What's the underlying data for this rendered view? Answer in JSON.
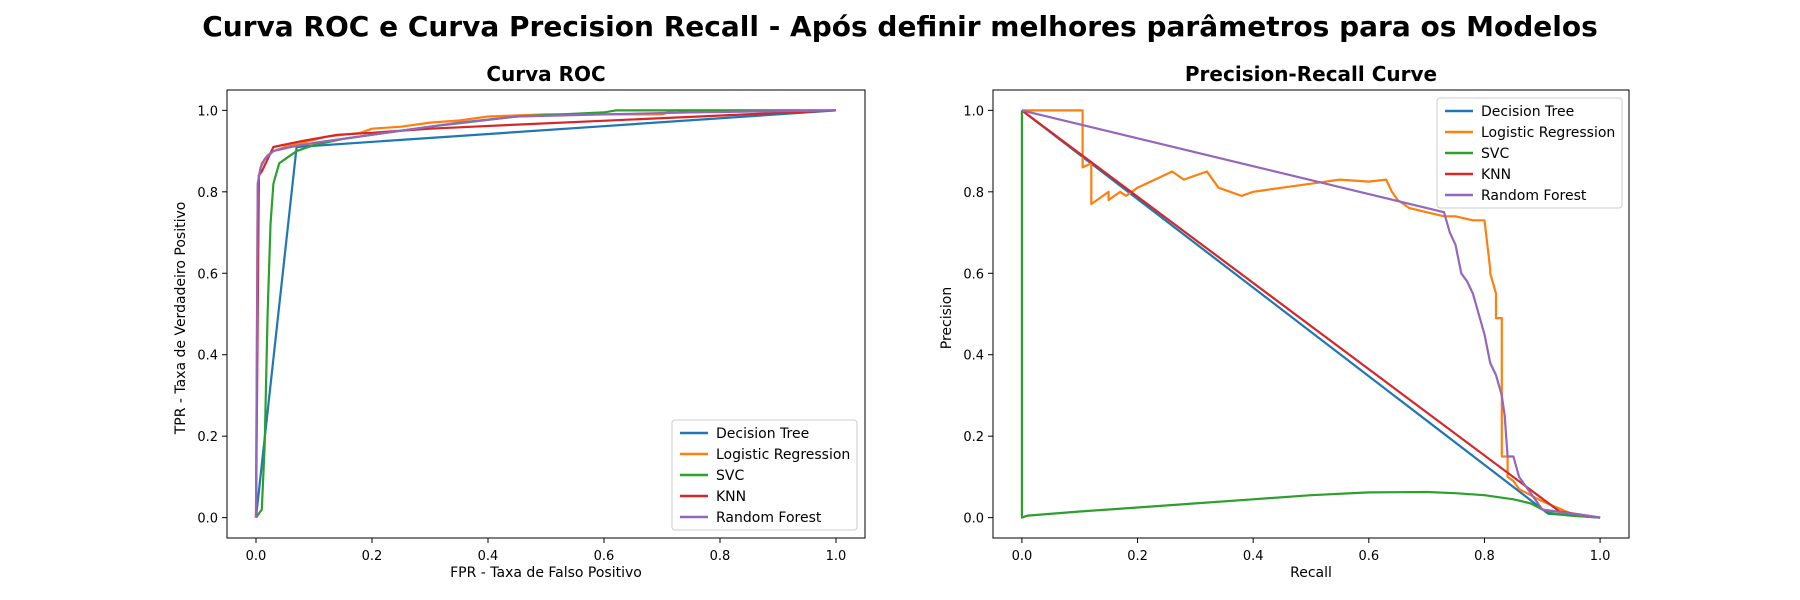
{
  "figure": {
    "title": "Curva ROC e Curva Precision Recall - Após definir melhores parâmetros para os Modelos"
  },
  "colors": {
    "Decision Tree": "#1f77b4",
    "Logistic Regression": "#ff7f0e",
    "SVC": "#2ca02c",
    "KNN": "#d62728",
    "Random Forest": "#9467bd"
  },
  "chart_data": [
    {
      "type": "line",
      "title": "Curva ROC",
      "xlabel": "FPR - Taxa de Falso Positivo",
      "ylabel": "TPR - Taxa de Verdadeiro Positivo",
      "xlim": [
        -0.05,
        1.05
      ],
      "ylim": [
        -0.05,
        1.05
      ],
      "xticks": [
        0.0,
        0.2,
        0.4,
        0.6,
        0.8,
        1.0
      ],
      "yticks": [
        0.0,
        0.2,
        0.4,
        0.6,
        0.8,
        1.0
      ],
      "legend": "lower-right",
      "series": [
        {
          "name": "Decision Tree",
          "x": [
            0.0,
            0.07,
            1.0
          ],
          "y": [
            0.0,
            0.91,
            1.0
          ]
        },
        {
          "name": "Logistic Regression",
          "x": [
            0.0,
            0.003,
            0.005,
            0.01,
            0.02,
            0.03,
            0.05,
            0.08,
            0.12,
            0.18,
            0.2,
            0.25,
            0.3,
            0.35,
            0.4,
            0.5,
            0.7,
            0.72,
            1.0
          ],
          "y": [
            0.0,
            0.8,
            0.84,
            0.87,
            0.89,
            0.9,
            0.91,
            0.92,
            0.935,
            0.945,
            0.955,
            0.96,
            0.97,
            0.975,
            0.985,
            0.99,
            0.99,
            1.0,
            1.0
          ]
        },
        {
          "name": "SVC",
          "x": [
            0.0,
            0.01,
            0.015,
            0.02,
            0.025,
            0.03,
            0.04,
            0.05,
            0.07,
            0.1,
            0.15,
            0.2,
            0.3,
            0.45,
            0.6,
            0.62,
            1.0
          ],
          "y": [
            0.0,
            0.02,
            0.18,
            0.5,
            0.72,
            0.82,
            0.87,
            0.88,
            0.9,
            0.915,
            0.93,
            0.94,
            0.96,
            0.985,
            0.995,
            1.0,
            1.0
          ]
        },
        {
          "name": "KNN",
          "x": [
            0.0,
            0.005,
            0.01,
            0.03,
            0.08,
            0.14,
            0.2,
            0.3,
            0.45,
            1.0
          ],
          "y": [
            0.0,
            0.84,
            0.85,
            0.91,
            0.925,
            0.94,
            0.945,
            0.955,
            0.965,
            1.0
          ]
        },
        {
          "name": "Random Forest",
          "x": [
            0.0,
            0.003,
            0.008,
            0.015,
            0.03,
            0.06,
            0.1,
            0.15,
            0.2,
            0.25,
            0.35,
            0.45,
            0.6,
            0.75,
            1.0
          ],
          "y": [
            0.0,
            0.82,
            0.86,
            0.88,
            0.9,
            0.91,
            0.92,
            0.93,
            0.94,
            0.95,
            0.97,
            0.985,
            0.99,
            0.995,
            1.0
          ]
        }
      ]
    },
    {
      "type": "line",
      "title": "Precision-Recall Curve",
      "xlabel": "Recall",
      "ylabel": "Precision",
      "xlim": [
        -0.05,
        1.05
      ],
      "ylim": [
        -0.05,
        1.05
      ],
      "xticks": [
        0.0,
        0.2,
        0.4,
        0.6,
        0.8,
        1.0
      ],
      "yticks": [
        0.0,
        0.2,
        0.4,
        0.6,
        0.8,
        1.0
      ],
      "legend": "upper-right",
      "series": [
        {
          "name": "Decision Tree",
          "x": [
            0.0,
            0.91,
            1.0
          ],
          "y": [
            1.0,
            0.01,
            0.0
          ]
        },
        {
          "name": "Logistic Regression",
          "x": [
            0.0,
            0.105,
            0.105,
            0.12,
            0.12,
            0.13,
            0.15,
            0.15,
            0.17,
            0.18,
            0.19,
            0.2,
            0.23,
            0.26,
            0.28,
            0.3,
            0.32,
            0.34,
            0.36,
            0.38,
            0.4,
            0.45,
            0.5,
            0.55,
            0.6,
            0.63,
            0.64,
            0.65,
            0.66,
            0.67,
            0.7,
            0.73,
            0.75,
            0.78,
            0.8,
            0.81,
            0.81,
            0.82,
            0.82,
            0.83,
            0.83,
            0.84,
            0.84,
            0.85,
            0.86,
            0.9,
            0.95,
            1.0
          ],
          "y": [
            1.0,
            1.0,
            0.86,
            0.87,
            0.77,
            0.78,
            0.8,
            0.78,
            0.8,
            0.79,
            0.8,
            0.81,
            0.83,
            0.85,
            0.83,
            0.84,
            0.85,
            0.81,
            0.8,
            0.79,
            0.8,
            0.81,
            0.82,
            0.83,
            0.825,
            0.83,
            0.8,
            0.78,
            0.77,
            0.76,
            0.75,
            0.74,
            0.74,
            0.73,
            0.73,
            0.61,
            0.6,
            0.55,
            0.49,
            0.49,
            0.15,
            0.15,
            0.1,
            0.09,
            0.07,
            0.04,
            0.01,
            0.0
          ]
        },
        {
          "name": "SVC",
          "x": [
            0.0,
            0.0,
            0.01,
            0.1,
            0.2,
            0.3,
            0.4,
            0.5,
            0.6,
            0.7,
            0.75,
            0.8,
            0.85,
            0.88,
            0.9,
            0.92,
            0.95,
            1.0
          ],
          "y": [
            1.0,
            0.0,
            0.005,
            0.015,
            0.025,
            0.035,
            0.045,
            0.055,
            0.062,
            0.063,
            0.06,
            0.055,
            0.045,
            0.035,
            0.02,
            0.01,
            0.005,
            0.0
          ]
        },
        {
          "name": "KNN",
          "x": [
            0.0,
            0.93,
            1.0
          ],
          "y": [
            1.0,
            0.015,
            0.0
          ]
        },
        {
          "name": "Random Forest",
          "x": [
            0.0,
            0.73,
            0.74,
            0.75,
            0.76,
            0.77,
            0.78,
            0.79,
            0.8,
            0.81,
            0.82,
            0.83,
            0.835,
            0.84,
            0.85,
            0.86,
            0.87,
            0.9,
            1.0
          ],
          "y": [
            1.0,
            0.75,
            0.7,
            0.67,
            0.6,
            0.58,
            0.55,
            0.5,
            0.45,
            0.38,
            0.35,
            0.3,
            0.25,
            0.15,
            0.15,
            0.1,
            0.08,
            0.02,
            0.0
          ]
        }
      ]
    }
  ]
}
